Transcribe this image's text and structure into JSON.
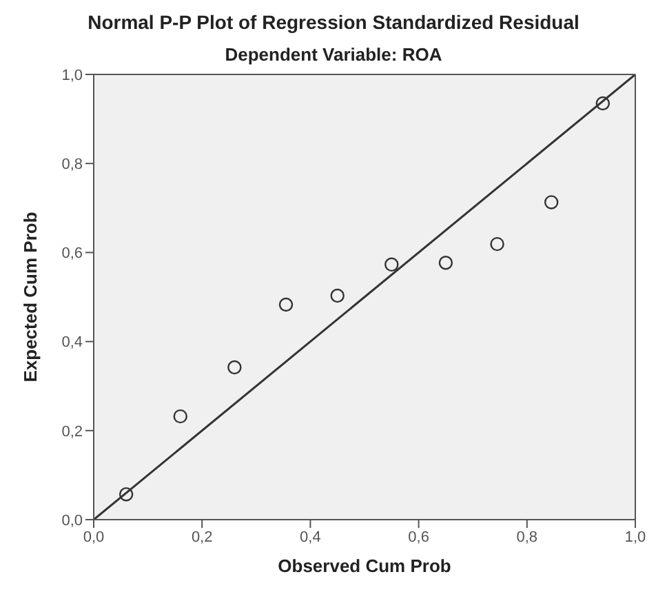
{
  "chart_data": {
    "type": "scatter",
    "title": "Normal P-P Plot of Regression Standardized Residual",
    "subtitle": "Dependent Variable: ROA",
    "xlabel": "Observed Cum Prob",
    "ylabel": "Expected Cum Prob",
    "xlim": [
      0,
      1
    ],
    "ylim": [
      0,
      1
    ],
    "xticks": [
      {
        "value": 0,
        "label": "0,0"
      },
      {
        "value": 0.2,
        "label": "0,2"
      },
      {
        "value": 0.4,
        "label": "0,4"
      },
      {
        "value": 0.6,
        "label": "0,6"
      },
      {
        "value": 0.8,
        "label": "0,8"
      },
      {
        "value": 1,
        "label": "1,0"
      }
    ],
    "yticks": [
      {
        "value": 0,
        "label": "0,0"
      },
      {
        "value": 0.2,
        "label": "0,2"
      },
      {
        "value": 0.4,
        "label": "0,4"
      },
      {
        "value": 0.6,
        "label": "0,6"
      },
      {
        "value": 0.8,
        "label": "0,8"
      },
      {
        "value": 1,
        "label": "1,0"
      }
    ],
    "grid": false,
    "series": [
      {
        "marker": "circle",
        "color": "#333333",
        "x": [
          0.06,
          0.16,
          0.26,
          0.355,
          0.45,
          0.55,
          0.65,
          0.745,
          0.845,
          0.94
        ],
        "values": [
          0.057,
          0.232,
          0.342,
          0.483,
          0.503,
          0.573,
          0.577,
          0.619,
          0.713,
          0.935
        ]
      },
      {
        "type": "line",
        "color": "#333333",
        "x": [
          0,
          1
        ],
        "values": [
          0,
          1
        ]
      }
    ]
  }
}
